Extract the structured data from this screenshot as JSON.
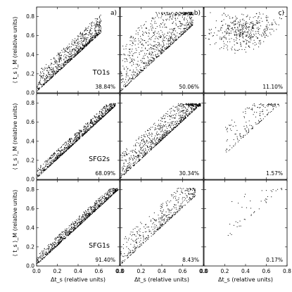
{
  "chart_data": {
    "type": "scatter",
    "layout": "3x3 grid of scatter panels",
    "xlabel": "Δt_s (relative units)",
    "ylabel": "⟨ t_s ⟩_M (relative units)",
    "xlim": [
      0.0,
      0.8
    ],
    "ylim": [
      0.0,
      0.9
    ],
    "xticks": [
      "0.0",
      "0.2",
      "0.4",
      "0.6",
      "0.8"
    ],
    "yticks": [
      "0.0",
      "0.2",
      "0.4",
      "0.6",
      "0.8"
    ],
    "grid": false,
    "column_labels": [
      "a)",
      "b)",
      "c)"
    ],
    "row_labels": [
      "TO1s",
      "SFG2s",
      "SFG1s"
    ],
    "panels": [
      {
        "row": 0,
        "col": 0,
        "percent": "38.84%",
        "density": "high",
        "xrange": [
          0.0,
          0.62
        ],
        "yrange_above_diagonal": [
          0.0,
          0.2
        ],
        "max_y": 0.85
      },
      {
        "row": 0,
        "col": 1,
        "percent": "50.06%",
        "density": "high",
        "xrange": [
          0.0,
          0.7
        ],
        "yrange_above_diagonal": [
          0.0,
          0.5
        ],
        "max_y": 0.85
      },
      {
        "row": 0,
        "col": 2,
        "percent": "11.10%",
        "density": "medium",
        "xrange": [
          0.05,
          0.7
        ],
        "cluster_center": [
          0.38,
          0.65
        ],
        "max_y": 0.85
      },
      {
        "row": 1,
        "col": 0,
        "percent": "68.09%",
        "density": "high",
        "xrange": [
          0.0,
          0.76
        ],
        "yrange_above_diagonal": [
          0.0,
          0.1
        ],
        "max_y": 0.8
      },
      {
        "row": 1,
        "col": 1,
        "percent": "30.34%",
        "density": "high",
        "xrange": [
          0.0,
          0.77
        ],
        "yrange_above_diagonal": [
          0.0,
          0.25
        ],
        "max_y": 0.8
      },
      {
        "row": 1,
        "col": 2,
        "percent": "1.57%",
        "density": "low",
        "xrange": [
          0.2,
          0.72
        ],
        "yrange_above_diagonal": [
          0.05,
          0.35
        ],
        "max_y": 0.8
      },
      {
        "row": 2,
        "col": 0,
        "percent": "91.40%",
        "density": "high",
        "xrange": [
          0.0,
          0.78
        ],
        "yrange_above_diagonal": [
          0.0,
          0.1
        ],
        "max_y": 0.82
      },
      {
        "row": 2,
        "col": 1,
        "percent": "8.43%",
        "density": "medium",
        "xrange": [
          0.0,
          0.72
        ],
        "yrange_above_diagonal": [
          0.0,
          0.25
        ],
        "max_y": 0.82
      },
      {
        "row": 2,
        "col": 2,
        "percent": "0.17%",
        "density": "sparse",
        "xrange": [
          0.2,
          0.75
        ],
        "yrange_above_diagonal": [
          0.05,
          0.4
        ],
        "max_y": 0.82
      }
    ]
  }
}
